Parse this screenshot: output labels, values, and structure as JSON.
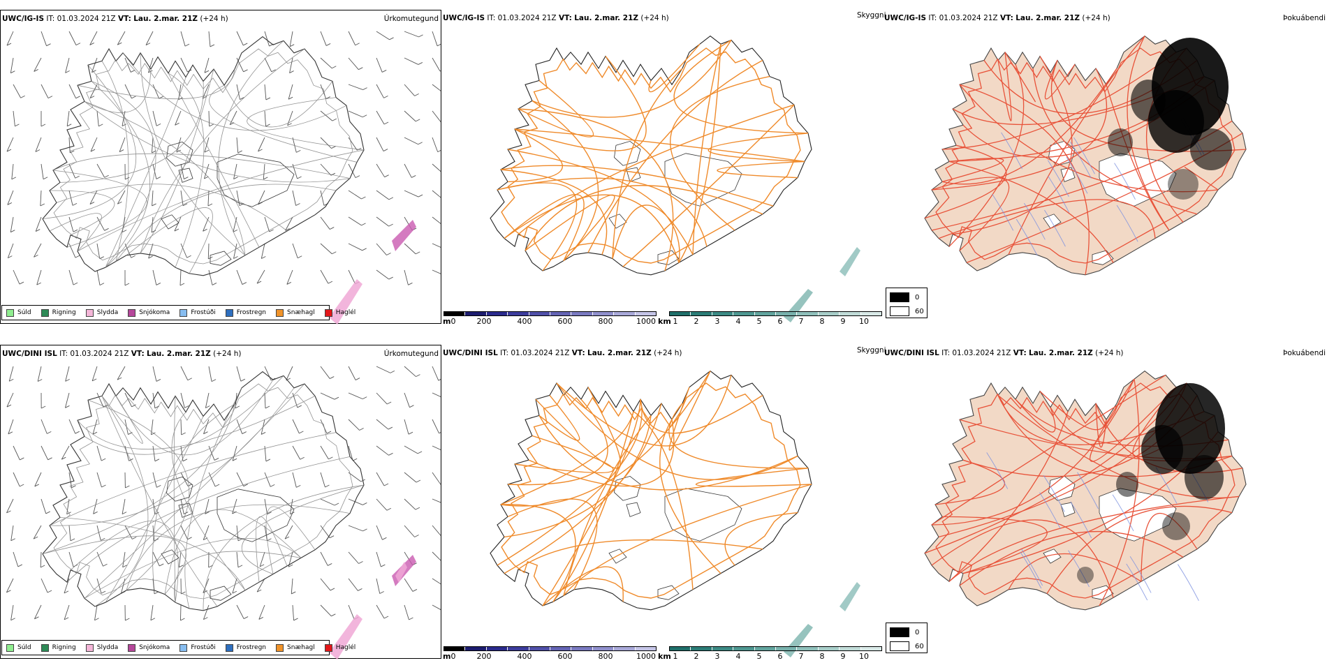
{
  "rows": [
    {
      "model": "UWC/IG-IS",
      "it_label": "IT:",
      "it_value": "01.03.2024 21Z",
      "vt_label": "VT:",
      "vt_value": "Lau. 2.mar. 21Z",
      "lead": "(+24 h)"
    },
    {
      "model": "UWC/DINI ISL",
      "it_label": "IT:",
      "it_value": "01.03.2024 21Z",
      "vt_label": "VT:",
      "vt_value": "Lau. 2.mar. 21Z",
      "lead": "(+24 h)"
    }
  ],
  "panel_titles": {
    "precip_type": "Úrkomutegund",
    "visibility": "Skyggni",
    "fog": "Þokuábendi"
  },
  "precip_legend": [
    {
      "label": "Súld",
      "color": "#90ee90"
    },
    {
      "label": "Rigning",
      "color": "#2e8b57"
    },
    {
      "label": "Slydda",
      "color": "#f4b6d8"
    },
    {
      "label": "Snjókoma",
      "color": "#b5479a"
    },
    {
      "label": "Frostúði",
      "color": "#87bdf0"
    },
    {
      "label": "Frostregn",
      "color": "#2e6fbf"
    },
    {
      "label": "Snæhagl",
      "color": "#f0932a"
    },
    {
      "label": "Haglél",
      "color": "#e3171a"
    }
  ],
  "visibility_scale_m": {
    "unit": "m",
    "ticks": [
      "0",
      "200",
      "400",
      "600",
      "800",
      "1000"
    ],
    "colors": [
      "#000000",
      "#1c1c6e",
      "#2a2a8c",
      "#3c3c9c",
      "#5050a8",
      "#6464b4",
      "#7a7ac0",
      "#9090cc",
      "#a8a8d8",
      "#c4c4e6"
    ]
  },
  "visibility_scale_km": {
    "unit": "km",
    "ticks": [
      "1",
      "2",
      "3",
      "4",
      "5",
      "6",
      "7",
      "8",
      "9",
      "10"
    ],
    "colors": [
      "#1f6f6a",
      "#2b7c76",
      "#3c8a84",
      "#4e9791",
      "#62a49e",
      "#78b1ac",
      "#8fbfba",
      "#a7cdc8",
      "#c0dbd7",
      "#d9e9e7"
    ]
  },
  "fog_legend": [
    {
      "label": "0",
      "color": "#000000"
    },
    {
      "label": "60",
      "color": "#ffffff"
    }
  ]
}
